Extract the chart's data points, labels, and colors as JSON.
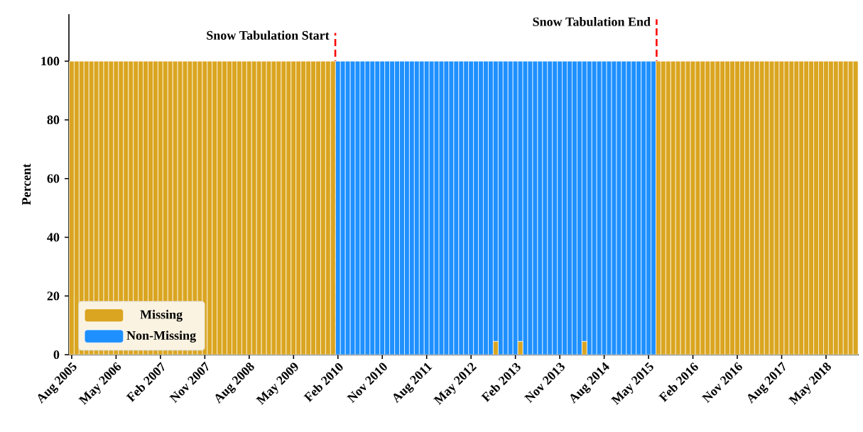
{
  "chart_data": {
    "type": "bar",
    "stacked": true,
    "ylabel": "Percent",
    "x": [
      "2005-08",
      "2005-09",
      "2005-10",
      "2005-11",
      "2005-12",
      "2006-01",
      "2006-02",
      "2006-03",
      "2006-04",
      "2006-05",
      "2006-06",
      "2006-07",
      "2006-08",
      "2006-09",
      "2006-10",
      "2006-11",
      "2006-12",
      "2007-01",
      "2007-02",
      "2007-03",
      "2007-04",
      "2007-05",
      "2007-06",
      "2007-07",
      "2007-08",
      "2007-09",
      "2007-10",
      "2007-11",
      "2007-12",
      "2008-01",
      "2008-02",
      "2008-03",
      "2008-04",
      "2008-05",
      "2008-06",
      "2008-07",
      "2008-08",
      "2008-09",
      "2008-10",
      "2008-11",
      "2008-12",
      "2009-01",
      "2009-02",
      "2009-03",
      "2009-04",
      "2009-05",
      "2009-06",
      "2009-07",
      "2009-08",
      "2009-09",
      "2009-10",
      "2009-11",
      "2009-12",
      "2010-01",
      "2010-02",
      "2010-03",
      "2010-04",
      "2010-05",
      "2010-06",
      "2010-07",
      "2010-08",
      "2010-09",
      "2010-10",
      "2010-11",
      "2010-12",
      "2011-01",
      "2011-02",
      "2011-03",
      "2011-04",
      "2011-05",
      "2011-06",
      "2011-07",
      "2011-08",
      "2011-09",
      "2011-10",
      "2011-11",
      "2011-12",
      "2012-01",
      "2012-02",
      "2012-03",
      "2012-04",
      "2012-05",
      "2012-06",
      "2012-07",
      "2012-08",
      "2012-09",
      "2012-10",
      "2012-11",
      "2012-12",
      "2013-01",
      "2013-02",
      "2013-03",
      "2013-04",
      "2013-05",
      "2013-06",
      "2013-07",
      "2013-08",
      "2013-09",
      "2013-10",
      "2013-11",
      "2013-12",
      "2014-01",
      "2014-02",
      "2014-03",
      "2014-04",
      "2014-05",
      "2014-06",
      "2014-07",
      "2014-08",
      "2014-09",
      "2014-10",
      "2014-11",
      "2014-12",
      "2015-01",
      "2015-02",
      "2015-03",
      "2015-04",
      "2015-05",
      "2015-06",
      "2015-07",
      "2015-08",
      "2015-09",
      "2015-10",
      "2015-11",
      "2015-12",
      "2016-01",
      "2016-02",
      "2016-03",
      "2016-04",
      "2016-05",
      "2016-06",
      "2016-07",
      "2016-08",
      "2016-09",
      "2016-10",
      "2016-11",
      "2016-12",
      "2017-01",
      "2017-02",
      "2017-03",
      "2017-04",
      "2017-05",
      "2017-06",
      "2017-07",
      "2017-08",
      "2017-09",
      "2017-10",
      "2017-11",
      "2017-12",
      "2018-01",
      "2018-02",
      "2018-03",
      "2018-04",
      "2018-05",
      "2018-06",
      "2018-07",
      "2018-08",
      "2018-09",
      "2018-10",
      "2018-11"
    ],
    "xlim": [
      "2005-07-14",
      "2018-11-20"
    ],
    "xticks": [
      {
        "value": "2005-08",
        "label": "Aug 2005"
      },
      {
        "value": "2006-05",
        "label": "May 2006"
      },
      {
        "value": "2007-02",
        "label": "Feb 2007"
      },
      {
        "value": "2007-11",
        "label": "Nov 2007"
      },
      {
        "value": "2008-08",
        "label": "Aug 2008"
      },
      {
        "value": "2009-05",
        "label": "May 2009"
      },
      {
        "value": "2010-02",
        "label": "Feb 2010"
      },
      {
        "value": "2010-11",
        "label": "Nov 2010"
      },
      {
        "value": "2011-08",
        "label": "Aug 2011"
      },
      {
        "value": "2012-05",
        "label": "May 2012"
      },
      {
        "value": "2013-02",
        "label": "Feb 2013"
      },
      {
        "value": "2013-11",
        "label": "Nov 2013"
      },
      {
        "value": "2014-08",
        "label": "Aug 2014"
      },
      {
        "value": "2015-05",
        "label": "May 2015"
      },
      {
        "value": "2016-02",
        "label": "Feb 2016"
      },
      {
        "value": "2016-11",
        "label": "Nov 2016"
      },
      {
        "value": "2017-08",
        "label": "Aug 2017"
      },
      {
        "value": "2018-05",
        "label": "May 2018"
      }
    ],
    "ylim": [
      0,
      116
    ],
    "yticks": [
      0,
      20,
      40,
      60,
      80,
      100
    ],
    "legend": "bottom left",
    "series": [
      {
        "name": "Missing",
        "color": "#daa520",
        "values": [
          100,
          100,
          100,
          100,
          100,
          100,
          100,
          100,
          100,
          100,
          100,
          100,
          100,
          100,
          100,
          100,
          100,
          100,
          100,
          100,
          100,
          100,
          100,
          100,
          100,
          100,
          100,
          100,
          100,
          100,
          100,
          100,
          100,
          100,
          100,
          100,
          100,
          100,
          100,
          100,
          100,
          100,
          100,
          100,
          100,
          100,
          100,
          100,
          100,
          100,
          100,
          100,
          100,
          100,
          0,
          0,
          0,
          0,
          0,
          0,
          0,
          0,
          0,
          0,
          0,
          0,
          0,
          0,
          0,
          0,
          0,
          0,
          0,
          0,
          0,
          0,
          0,
          0,
          0,
          0,
          0,
          0,
          0,
          0,
          0,
          0,
          4.5,
          0,
          0,
          0,
          0,
          4.5,
          0,
          0,
          0,
          0,
          0,
          0,
          0,
          0,
          0,
          0,
          0,
          0,
          4.5,
          0,
          0,
          0,
          0,
          0,
          0,
          0,
          0,
          0,
          0,
          0,
          0,
          0,
          0,
          100,
          100,
          100,
          100,
          100,
          100,
          100,
          100,
          100,
          100,
          100,
          100,
          100,
          100,
          100,
          100,
          100,
          100,
          100,
          100,
          100,
          100,
          100,
          100,
          100,
          100,
          100,
          100,
          100,
          100,
          100,
          100,
          100,
          100,
          100,
          100,
          100,
          100,
          100,
          100,
          100
        ]
      },
      {
        "name": "Non-Missing",
        "color": "#1e90ff",
        "values": [
          0,
          0,
          0,
          0,
          0,
          0,
          0,
          0,
          0,
          0,
          0,
          0,
          0,
          0,
          0,
          0,
          0,
          0,
          0,
          0,
          0,
          0,
          0,
          0,
          0,
          0,
          0,
          0,
          0,
          0,
          0,
          0,
          0,
          0,
          0,
          0,
          0,
          0,
          0,
          0,
          0,
          0,
          0,
          0,
          0,
          0,
          0,
          0,
          0,
          0,
          0,
          0,
          0,
          0,
          100,
          100,
          100,
          100,
          100,
          100,
          100,
          100,
          100,
          100,
          100,
          100,
          100,
          100,
          100,
          100,
          100,
          100,
          100,
          100,
          100,
          100,
          100,
          100,
          100,
          100,
          100,
          100,
          100,
          100,
          100,
          100,
          95.5,
          100,
          100,
          100,
          100,
          95.5,
          100,
          100,
          100,
          100,
          100,
          100,
          100,
          100,
          100,
          100,
          100,
          100,
          95.5,
          100,
          100,
          100,
          100,
          100,
          100,
          100,
          100,
          100,
          100,
          100,
          100,
          100,
          100,
          0,
          0,
          0,
          0,
          0,
          0,
          0,
          0,
          0,
          0,
          0,
          0,
          0,
          0,
          0,
          0,
          0,
          0,
          0,
          0,
          0,
          0,
          0,
          0,
          0,
          0,
          0,
          0,
          0,
          0,
          0,
          0,
          0,
          0,
          0,
          0,
          0,
          0,
          0,
          0,
          0
        ]
      }
    ],
    "ref_lines": [
      {
        "axis": "x",
        "value": "2010-01-15",
        "label": "Snow Tabulation Start",
        "color": "#ff0000",
        "line_style": "dashed"
      },
      {
        "axis": "x",
        "value": "2015-06-20",
        "label": "Snow Tabulation End",
        "color": "#ff0000",
        "line_style": "dashed"
      }
    ]
  }
}
